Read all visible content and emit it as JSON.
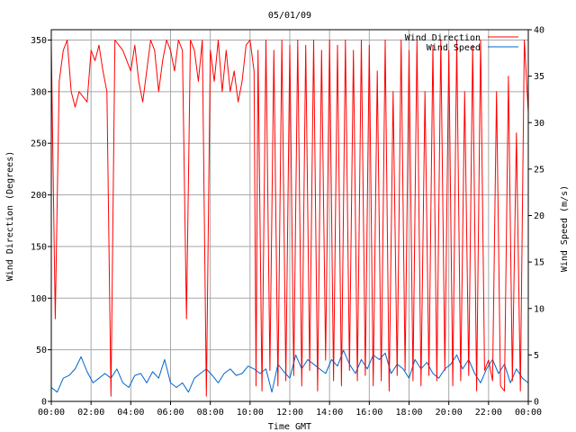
{
  "chart_data": {
    "type": "line",
    "title": "05/01/09",
    "xlabel": "Time GMT",
    "ylabel_left": "Wind Direction (Degrees)",
    "ylabel_right": "Wind Speed (m/s)",
    "x_range_hours": [
      0,
      24
    ],
    "x_ticks": [
      "00:00",
      "02:00",
      "04:00",
      "06:00",
      "08:00",
      "10:00",
      "12:00",
      "14:00",
      "16:00",
      "18:00",
      "20:00",
      "22:00",
      "00:00"
    ],
    "y_left_range": [
      0,
      360
    ],
    "y_left_ticks": [
      0,
      50,
      100,
      150,
      200,
      250,
      300,
      350
    ],
    "y_right_range": [
      0,
      40
    ],
    "y_right_ticks": [
      0,
      5,
      10,
      15,
      20,
      25,
      30,
      35,
      40
    ],
    "grid": true,
    "legend_position": "top-right",
    "series": [
      {
        "name": "Wind Direction",
        "axis": "left",
        "color": "#ff0000",
        "points": [
          [
            0.0,
            345
          ],
          [
            0.2,
            80
          ],
          [
            0.4,
            310
          ],
          [
            0.6,
            340
          ],
          [
            0.8,
            350
          ],
          [
            1.0,
            300
          ],
          [
            1.2,
            285
          ],
          [
            1.4,
            300
          ],
          [
            1.6,
            295
          ],
          [
            1.8,
            290
          ],
          [
            2.0,
            340
          ],
          [
            2.2,
            330
          ],
          [
            2.4,
            345
          ],
          [
            2.6,
            320
          ],
          [
            2.8,
            300
          ],
          [
            3.0,
            5
          ],
          [
            3.2,
            350
          ],
          [
            3.4,
            345
          ],
          [
            3.6,
            340
          ],
          [
            3.8,
            330
          ],
          [
            4.0,
            320
          ],
          [
            4.2,
            345
          ],
          [
            4.4,
            310
          ],
          [
            4.6,
            290
          ],
          [
            4.8,
            320
          ],
          [
            5.0,
            350
          ],
          [
            5.2,
            340
          ],
          [
            5.4,
            300
          ],
          [
            5.6,
            330
          ],
          [
            5.8,
            350
          ],
          [
            6.0,
            340
          ],
          [
            6.2,
            320
          ],
          [
            6.4,
            350
          ],
          [
            6.6,
            340
          ],
          [
            6.8,
            80
          ],
          [
            7.0,
            350
          ],
          [
            7.2,
            340
          ],
          [
            7.4,
            310
          ],
          [
            7.6,
            350
          ],
          [
            7.8,
            5
          ],
          [
            8.0,
            340
          ],
          [
            8.2,
            310
          ],
          [
            8.4,
            350
          ],
          [
            8.6,
            300
          ],
          [
            8.8,
            340
          ],
          [
            9.0,
            300
          ],
          [
            9.2,
            320
          ],
          [
            9.4,
            290
          ],
          [
            9.6,
            310
          ],
          [
            9.8,
            345
          ],
          [
            10.0,
            350
          ],
          [
            10.2,
            320
          ],
          [
            10.3,
            15
          ],
          [
            10.4,
            340
          ],
          [
            10.6,
            10
          ],
          [
            10.8,
            350
          ],
          [
            11.0,
            30
          ],
          [
            11.2,
            340
          ],
          [
            11.4,
            15
          ],
          [
            11.6,
            350
          ],
          [
            11.8,
            20
          ],
          [
            12.0,
            345
          ],
          [
            12.2,
            25
          ],
          [
            12.4,
            350
          ],
          [
            12.6,
            15
          ],
          [
            12.8,
            345
          ],
          [
            13.0,
            30
          ],
          [
            13.2,
            350
          ],
          [
            13.4,
            10
          ],
          [
            13.6,
            340
          ],
          [
            13.8,
            40
          ],
          [
            14.0,
            350
          ],
          [
            14.2,
            20
          ],
          [
            14.4,
            345
          ],
          [
            14.6,
            15
          ],
          [
            14.8,
            350
          ],
          [
            15.0,
            30
          ],
          [
            15.2,
            340
          ],
          [
            15.4,
            20
          ],
          [
            15.6,
            350
          ],
          [
            15.8,
            25
          ],
          [
            16.0,
            345
          ],
          [
            16.2,
            15
          ],
          [
            16.4,
            320
          ],
          [
            16.6,
            20
          ],
          [
            16.8,
            350
          ],
          [
            17.0,
            10
          ],
          [
            17.2,
            300
          ],
          [
            17.4,
            25
          ],
          [
            17.6,
            350
          ],
          [
            17.8,
            30
          ],
          [
            18.0,
            340
          ],
          [
            18.2,
            20
          ],
          [
            18.4,
            350
          ],
          [
            18.6,
            15
          ],
          [
            18.8,
            300
          ],
          [
            19.0,
            25
          ],
          [
            19.2,
            345
          ],
          [
            19.4,
            20
          ],
          [
            19.6,
            350
          ],
          [
            19.8,
            30
          ],
          [
            20.0,
            340
          ],
          [
            20.2,
            15
          ],
          [
            20.4,
            350
          ],
          [
            20.6,
            20
          ],
          [
            20.8,
            300
          ],
          [
            21.0,
            25
          ],
          [
            21.2,
            345
          ],
          [
            21.4,
            10
          ],
          [
            21.6,
            350
          ],
          [
            21.8,
            30
          ],
          [
            22.0,
            40
          ],
          [
            22.2,
            20
          ],
          [
            22.4,
            300
          ],
          [
            22.6,
            15
          ],
          [
            22.8,
            10
          ],
          [
            23.0,
            315
          ],
          [
            23.2,
            20
          ],
          [
            23.4,
            260
          ],
          [
            23.6,
            10
          ],
          [
            23.8,
            350
          ],
          [
            24.0,
            280
          ]
        ]
      },
      {
        "name": "Wind Speed",
        "axis": "right",
        "color": "#0066cc",
        "points": [
          [
            0.0,
            1.5
          ],
          [
            0.3,
            1.0
          ],
          [
            0.6,
            2.5
          ],
          [
            0.9,
            2.8
          ],
          [
            1.2,
            3.5
          ],
          [
            1.5,
            4.8
          ],
          [
            1.8,
            3.2
          ],
          [
            2.1,
            2.0
          ],
          [
            2.4,
            2.5
          ],
          [
            2.7,
            3.0
          ],
          [
            3.0,
            2.5
          ],
          [
            3.3,
            3.5
          ],
          [
            3.6,
            2.0
          ],
          [
            3.9,
            1.5
          ],
          [
            4.2,
            2.8
          ],
          [
            4.5,
            3.0
          ],
          [
            4.8,
            2.0
          ],
          [
            5.1,
            3.2
          ],
          [
            5.4,
            2.5
          ],
          [
            5.7,
            4.5
          ],
          [
            6.0,
            2.0
          ],
          [
            6.3,
            1.5
          ],
          [
            6.6,
            2.0
          ],
          [
            6.9,
            1.0
          ],
          [
            7.2,
            2.5
          ],
          [
            7.5,
            3.0
          ],
          [
            7.8,
            3.5
          ],
          [
            8.1,
            2.8
          ],
          [
            8.4,
            2.0
          ],
          [
            8.7,
            3.0
          ],
          [
            9.0,
            3.5
          ],
          [
            9.3,
            2.8
          ],
          [
            9.6,
            3.0
          ],
          [
            9.9,
            3.8
          ],
          [
            10.2,
            3.5
          ],
          [
            10.5,
            3.0
          ],
          [
            10.8,
            3.5
          ],
          [
            11.1,
            1.0
          ],
          [
            11.4,
            4.0
          ],
          [
            11.7,
            3.2
          ],
          [
            12.0,
            2.5
          ],
          [
            12.3,
            5.0
          ],
          [
            12.6,
            3.5
          ],
          [
            12.9,
            4.5
          ],
          [
            13.2,
            4.0
          ],
          [
            13.5,
            3.5
          ],
          [
            13.8,
            3.0
          ],
          [
            14.1,
            4.5
          ],
          [
            14.4,
            3.8
          ],
          [
            14.7,
            5.5
          ],
          [
            15.0,
            4.0
          ],
          [
            15.3,
            3.0
          ],
          [
            15.6,
            4.5
          ],
          [
            15.9,
            3.5
          ],
          [
            16.2,
            5.0
          ],
          [
            16.5,
            4.5
          ],
          [
            16.8,
            5.2
          ],
          [
            17.1,
            3.0
          ],
          [
            17.4,
            4.0
          ],
          [
            17.7,
            3.5
          ],
          [
            18.0,
            2.5
          ],
          [
            18.3,
            4.5
          ],
          [
            18.6,
            3.5
          ],
          [
            18.9,
            4.2
          ],
          [
            19.2,
            3.0
          ],
          [
            19.5,
            2.5
          ],
          [
            19.8,
            3.5
          ],
          [
            20.1,
            4.0
          ],
          [
            20.4,
            5.0
          ],
          [
            20.7,
            3.5
          ],
          [
            21.0,
            4.5
          ],
          [
            21.3,
            3.0
          ],
          [
            21.6,
            2.0
          ],
          [
            21.9,
            3.5
          ],
          [
            22.2,
            4.5
          ],
          [
            22.5,
            3.0
          ],
          [
            22.8,
            4.0
          ],
          [
            23.1,
            2.0
          ],
          [
            23.4,
            3.5
          ],
          [
            23.7,
            2.5
          ],
          [
            24.0,
            2.0
          ]
        ]
      }
    ]
  }
}
